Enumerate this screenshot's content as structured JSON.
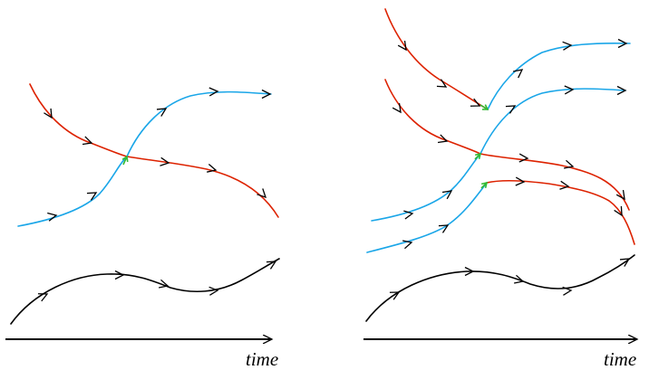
{
  "axis_label_left": "time",
  "axis_label_right": "time",
  "colors": {
    "red": "#dd2200",
    "blue": "#1aa6e8",
    "black": "#000000",
    "green": "#33bb33"
  }
}
